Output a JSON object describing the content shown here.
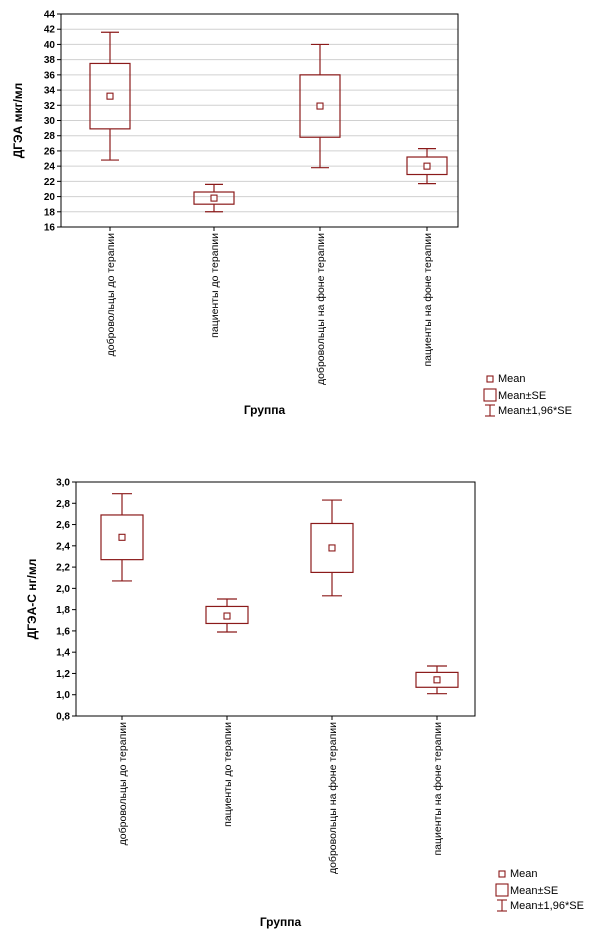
{
  "colors": {
    "mark": "#8b1a1a",
    "grid": "#d0d0d0",
    "axis": "#000000"
  },
  "chart_data": [
    {
      "type": "box",
      "ylabel": "ДГЭА  мкг/мл",
      "xlabel": "Группа",
      "ylim": [
        16,
        44
      ],
      "yticks": [
        16,
        18,
        20,
        22,
        24,
        26,
        28,
        30,
        32,
        34,
        36,
        38,
        40,
        42,
        44
      ],
      "ytick_labels": [
        "16",
        "18",
        "20",
        "22",
        "24",
        "26",
        "28",
        "30",
        "32",
        "34",
        "36",
        "38",
        "40",
        "42",
        "44"
      ],
      "grid": true,
      "categories": [
        "добровольцы до терапии",
        "пациенты до терапии",
        "добровольцы на фоне терапии",
        "пациенты на фоне терапии"
      ],
      "mean": [
        33.2,
        19.8,
        31.9,
        24.0
      ],
      "se_low": [
        28.9,
        19.0,
        27.8,
        22.9
      ],
      "se_high": [
        37.5,
        20.6,
        36.0,
        25.2
      ],
      "ci_low": [
        24.8,
        18.0,
        23.8,
        21.7
      ],
      "ci_high": [
        41.6,
        21.6,
        40.0,
        26.3
      ],
      "legend": [
        "Mean",
        "Mean±SE",
        "Mean±1,96*SE"
      ],
      "legend_position": "bottom-right"
    },
    {
      "type": "box",
      "ylabel": "ДГЭА-С  нг/мл",
      "xlabel": "Группа",
      "ylim": [
        0.8,
        3.0
      ],
      "yticks": [
        0.8,
        1.0,
        1.2,
        1.4,
        1.6,
        1.8,
        2.0,
        2.2,
        2.4,
        2.6,
        2.8,
        3.0
      ],
      "ytick_labels": [
        "0,8",
        "1,0",
        "1,2",
        "1,4",
        "1,6",
        "1,8",
        "2,0",
        "2,2",
        "2,4",
        "2,6",
        "2,8",
        "3,0"
      ],
      "grid": false,
      "categories": [
        "добровольцы до терапии",
        "пациенты до терапии",
        "добровольцы на фоне терапии",
        "пациенты на фоне терапии"
      ],
      "mean": [
        2.48,
        1.74,
        2.38,
        1.14
      ],
      "se_low": [
        2.27,
        1.67,
        2.15,
        1.07
      ],
      "se_high": [
        2.69,
        1.83,
        2.61,
        1.21
      ],
      "ci_low": [
        2.07,
        1.59,
        1.93,
        1.01
      ],
      "ci_high": [
        2.89,
        1.9,
        2.83,
        1.27
      ],
      "legend": [
        "Mean",
        "Mean±SE",
        "Mean±1,96*SE"
      ],
      "legend_position": "bottom-right"
    }
  ]
}
